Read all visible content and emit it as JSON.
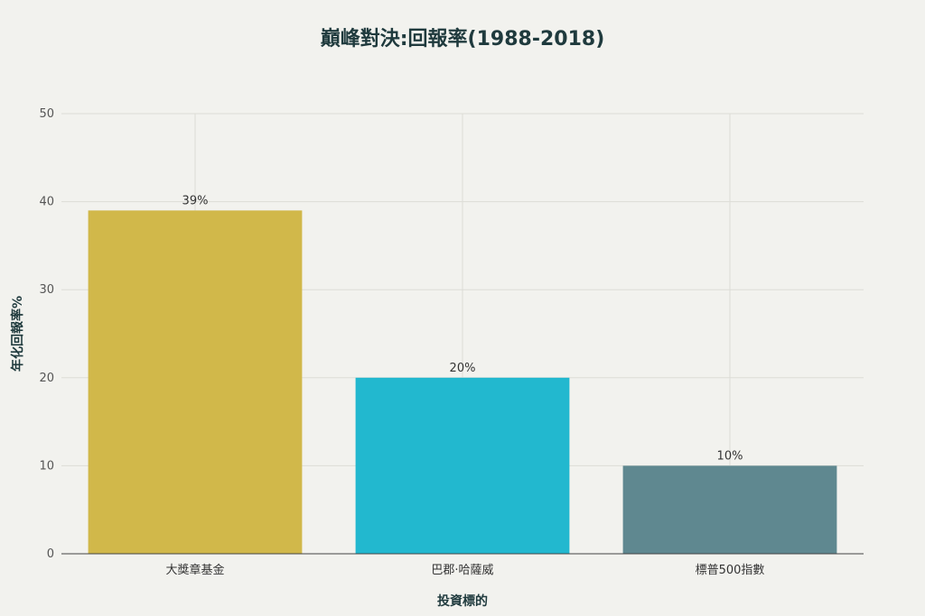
{
  "chart_data": {
    "type": "bar",
    "title": "巔峰對決:回報率(1988-2018)",
    "xlabel": "投資標的",
    "ylabel": "年化回報率%",
    "categories": [
      "大獎章基金",
      "巴郡·哈薩威",
      "標普500指數"
    ],
    "values": [
      39,
      20,
      10
    ],
    "data_labels": [
      "39%",
      "20%",
      "10%"
    ],
    "colors": [
      "#d1b84a",
      "#22b8cf",
      "#5f8890"
    ],
    "ylim": [
      0,
      50
    ],
    "yticks": [
      0,
      10,
      20,
      30,
      40,
      50
    ],
    "ytick_labels": [
      "0",
      "10",
      "20",
      "30",
      "40",
      "50"
    ],
    "grid": true,
    "legend": "none"
  }
}
